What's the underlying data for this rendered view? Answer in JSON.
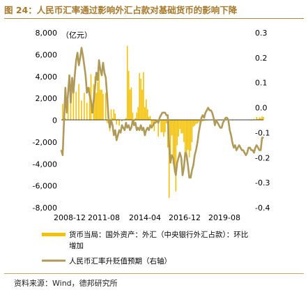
{
  "header": {
    "title": "图 24：人民币汇率通过影响外汇占款对基础货币的影响下降"
  },
  "footer": {
    "source": "资料来源：Wind，德邦研究所"
  },
  "chart_data": {
    "type": "bar+line",
    "unit_label": "（亿元）",
    "left_axis": {
      "ylim": [
        -8000,
        8000
      ],
      "ticks": [
        8000,
        6000,
        4000,
        2000,
        0,
        -2000,
        -4000,
        -6000,
        -8000
      ],
      "tick_labels": [
        "8,000",
        "6,000",
        "4,000",
        "2,000",
        "0",
        "-2,000",
        "-4,000",
        "-6,000",
        "-8,000"
      ]
    },
    "right_axis": {
      "ylim": [
        -0.4,
        0.3
      ],
      "ticks": [
        0.3,
        0.2,
        0.1,
        0.0,
        -0.1,
        -0.2,
        -0.3,
        -0.4
      ],
      "tick_labels": [
        "0.3",
        "0.2",
        "0.1",
        "0.0",
        "-0.1",
        "-0.2",
        "-0.3",
        "-0.4"
      ]
    },
    "x_axis": {
      "range": [
        "2008-12",
        "2021-06"
      ],
      "tick_labels": [
        "2008-12",
        "2011-08",
        "2014-04",
        "2016-12",
        "2019-08"
      ]
    },
    "legend": {
      "placement": "bottom",
      "entries": [
        "货币当局：国外资产：外汇（中央银行外汇占款）：环比增加",
        "人民币汇率升贬值预期（右轴）"
      ]
    },
    "colors": {
      "bar": "#f5c000",
      "line": "#b09a5a",
      "axis": "#000000"
    },
    "series": [
      {
        "name": "货币当局：国外资产：外汇（中央银行外汇占款）：环比增加",
        "type": "bar",
        "axis": "left",
        "points": [
          [
            "2009-01",
            1500
          ],
          [
            "2009-03",
            200
          ],
          [
            "2009-05",
            1800
          ],
          [
            "2009-07",
            2400
          ],
          [
            "2009-09",
            3200
          ],
          [
            "2009-11",
            2600
          ],
          [
            "2010-01",
            3300
          ],
          [
            "2010-03",
            1800
          ],
          [
            "2010-05",
            2500
          ],
          [
            "2010-07",
            1600
          ],
          [
            "2010-09",
            3000
          ],
          [
            "2010-10",
            4200
          ],
          [
            "2010-12",
            3300
          ],
          [
            "2011-01",
            4000
          ],
          [
            "2011-02",
            2500
          ],
          [
            "2011-03",
            3500
          ],
          [
            "2011-04",
            4400
          ],
          [
            "2011-05",
            2800
          ],
          [
            "2011-06",
            2800
          ],
          [
            "2011-07",
            2400
          ],
          [
            "2011-09",
            2500
          ],
          [
            "2011-10",
            -250
          ],
          [
            "2011-11",
            -300
          ],
          [
            "2011-12",
            -1000
          ],
          [
            "2012-01",
            1000
          ],
          [
            "2012-02",
            200
          ],
          [
            "2012-03",
            1000
          ],
          [
            "2012-04",
            600
          ],
          [
            "2012-05",
            -400
          ],
          [
            "2012-06",
            100
          ],
          [
            "2012-07",
            -500
          ],
          [
            "2012-09",
            -100
          ],
          [
            "2012-11",
            100
          ],
          [
            "2012-12",
            200
          ],
          [
            "2013-01",
            6800
          ],
          [
            "2013-02",
            4500
          ],
          [
            "2013-03",
            2800
          ],
          [
            "2013-04",
            3000
          ],
          [
            "2013-05",
            700
          ],
          [
            "2013-06",
            -400
          ],
          [
            "2013-07",
            200
          ],
          [
            "2013-08",
            700
          ],
          [
            "2013-09",
            1200
          ],
          [
            "2013-10",
            4300
          ],
          [
            "2013-11",
            3800
          ],
          [
            "2013-12",
            2800
          ],
          [
            "2014-01",
            4400
          ],
          [
            "2014-02",
            1200
          ],
          [
            "2014-03",
            1900
          ],
          [
            "2014-04",
            1000
          ],
          [
            "2014-05",
            300
          ],
          [
            "2014-06",
            400
          ],
          [
            "2014-07",
            -600
          ],
          [
            "2014-08",
            -300
          ],
          [
            "2014-09",
            -1000
          ],
          [
            "2014-10",
            -250
          ],
          [
            "2014-11",
            -100
          ],
          [
            "2014-12",
            -1500
          ],
          [
            "2015-01",
            -100
          ],
          [
            "2015-02",
            -1100
          ],
          [
            "2015-03",
            -1100
          ],
          [
            "2015-04",
            -1500
          ],
          [
            "2015-05",
            -1100
          ],
          [
            "2015-06",
            -300
          ],
          [
            "2015-07",
            -2500
          ],
          [
            "2015-08",
            -7100
          ],
          [
            "2015-09",
            -3600
          ],
          [
            "2015-10",
            -1400
          ],
          [
            "2015-11",
            -4000
          ],
          [
            "2015-12",
            -4800
          ],
          [
            "2016-01",
            -6500
          ],
          [
            "2016-02",
            -2300
          ],
          [
            "2016-03",
            -1500
          ],
          [
            "2016-04",
            -800
          ],
          [
            "2016-05",
            -1200
          ],
          [
            "2016-06",
            -1200
          ],
          [
            "2016-07",
            -2000
          ],
          [
            "2016-08",
            -3000
          ],
          [
            "2016-09",
            -3700
          ],
          [
            "2016-10",
            -2700
          ],
          [
            "2016-11",
            -3400
          ],
          [
            "2016-12",
            -2800
          ],
          [
            "2017-01",
            -2000
          ],
          [
            "2017-02",
            -600
          ],
          [
            "2017-03",
            -500
          ],
          [
            "2017-04",
            -350
          ],
          [
            "2017-05",
            -300
          ],
          [
            "2017-06",
            -200
          ],
          [
            "2017-07",
            -200
          ],
          [
            "2017-08",
            -150
          ],
          [
            "2017-09",
            -100
          ],
          [
            "2017-10",
            -50
          ],
          [
            "2017-11",
            -30
          ],
          [
            "2017-12",
            -20
          ],
          [
            "2018-01",
            20
          ],
          [
            "2018-03",
            30
          ],
          [
            "2018-05",
            -20
          ],
          [
            "2018-07",
            -30
          ],
          [
            "2018-09",
            -40
          ],
          [
            "2018-11",
            -20
          ],
          [
            "2019-01",
            50
          ],
          [
            "2019-04",
            30
          ],
          [
            "2019-07",
            -20
          ],
          [
            "2019-10",
            40
          ],
          [
            "2020-01",
            50
          ],
          [
            "2020-04",
            60
          ],
          [
            "2020-07",
            80
          ],
          [
            "2020-09",
            -30
          ],
          [
            "2020-11",
            120
          ],
          [
            "2021-01",
            300
          ],
          [
            "2021-02",
            100
          ],
          [
            "2021-03",
            250
          ],
          [
            "2021-04",
            200
          ],
          [
            "2021-05",
            350
          ],
          [
            "2021-06",
            300
          ]
        ]
      },
      {
        "name": "人民币汇率升贬值预期（右轴）",
        "type": "line",
        "axis": "right",
        "points": [
          [
            "2008-12",
            -0.17
          ],
          [
            "2009-01",
            -0.19
          ],
          [
            "2009-02",
            -0.05
          ],
          [
            "2009-03",
            0.08
          ],
          [
            "2009-04",
            -0.02
          ],
          [
            "2009-05",
            0.06
          ],
          [
            "2009-06",
            0.13
          ],
          [
            "2009-07",
            0.02
          ],
          [
            "2009-08",
            0.12
          ],
          [
            "2009-09",
            0.06
          ],
          [
            "2009-10",
            0.13
          ],
          [
            "2009-11",
            0.19
          ],
          [
            "2009-12",
            0.22
          ],
          [
            "2010-01",
            0.17
          ],
          [
            "2010-02",
            0.2
          ],
          [
            "2010-03",
            0.24
          ],
          [
            "2010-04",
            0.21
          ],
          [
            "2010-05",
            0.17
          ],
          [
            "2010-06",
            0.13
          ],
          [
            "2010-07",
            0.06
          ],
          [
            "2010-08",
            0.08
          ],
          [
            "2010-09",
            0.05
          ],
          [
            "2010-10",
            0.03
          ],
          [
            "2010-11",
            -0.02
          ],
          [
            "2010-12",
            0.03
          ],
          [
            "2011-01",
            0.08
          ],
          [
            "2011-02",
            0.14
          ],
          [
            "2011-03",
            0.11
          ],
          [
            "2011-04",
            0.19
          ],
          [
            "2011-05",
            0.15
          ],
          [
            "2011-06",
            0.13
          ],
          [
            "2011-07",
            0.18
          ],
          [
            "2011-08",
            0.14
          ],
          [
            "2011-09",
            0.12
          ],
          [
            "2011-10",
            0.05
          ],
          [
            "2011-11",
            -0.04
          ],
          [
            "2011-12",
            -0.08
          ],
          [
            "2012-01",
            -0.05
          ],
          [
            "2012-02",
            -0.07
          ],
          [
            "2012-03",
            -0.11
          ],
          [
            "2012-04",
            -0.09
          ],
          [
            "2012-05",
            -0.13
          ],
          [
            "2012-06",
            -0.11
          ],
          [
            "2012-07",
            -0.09
          ],
          [
            "2012-08",
            -0.1
          ],
          [
            "2012-09",
            -0.07
          ],
          [
            "2012-10",
            -0.08
          ],
          [
            "2012-11",
            -0.09
          ],
          [
            "2012-12",
            -0.06
          ],
          [
            "2013-01",
            -0.08
          ],
          [
            "2013-02",
            -0.07
          ],
          [
            "2013-03",
            -0.09
          ],
          [
            "2013-04",
            -0.08
          ],
          [
            "2013-05",
            -0.05
          ],
          [
            "2013-06",
            -0.07
          ],
          [
            "2013-07",
            -0.06
          ],
          [
            "2013-08",
            -0.09
          ],
          [
            "2013-09",
            -0.08
          ],
          [
            "2013-10",
            -0.09
          ],
          [
            "2013-11",
            -0.07
          ],
          [
            "2013-12",
            -0.09
          ],
          [
            "2014-01",
            -0.08
          ],
          [
            "2014-02",
            -0.11
          ],
          [
            "2014-03",
            -0.09
          ],
          [
            "2014-04",
            -0.08
          ],
          [
            "2014-05",
            -0.09
          ],
          [
            "2014-06",
            -0.07
          ],
          [
            "2014-07",
            -0.08
          ],
          [
            "2014-08",
            -0.07
          ],
          [
            "2014-09",
            -0.06
          ],
          [
            "2014-10",
            -0.06
          ],
          [
            "2014-11",
            -0.05
          ],
          [
            "2014-12",
            -0.06
          ],
          [
            "2015-01",
            -0.04
          ],
          [
            "2015-02",
            -0.03
          ],
          [
            "2015-03",
            -0.02
          ],
          [
            "2015-04",
            -0.02
          ],
          [
            "2015-05",
            -0.02
          ],
          [
            "2015-06",
            -0.03
          ],
          [
            "2015-07",
            -0.03
          ],
          [
            "2015-08",
            -0.15
          ],
          [
            "2015-09",
            -0.22
          ],
          [
            "2015-10",
            -0.19
          ],
          [
            "2015-11",
            -0.2
          ],
          [
            "2015-12",
            -0.24
          ],
          [
            "2016-01",
            -0.27
          ],
          [
            "2016-02",
            -0.22
          ],
          [
            "2016-03",
            -0.2
          ],
          [
            "2016-04",
            -0.18
          ],
          [
            "2016-05",
            -0.2
          ],
          [
            "2016-06",
            -0.27
          ],
          [
            "2016-07",
            -0.24
          ],
          [
            "2016-08",
            -0.18
          ],
          [
            "2016-09",
            -0.19
          ],
          [
            "2016-10",
            -0.23
          ],
          [
            "2016-11",
            -0.28
          ],
          [
            "2016-12",
            -0.28
          ],
          [
            "2017-01",
            -0.25
          ],
          [
            "2017-02",
            -0.23
          ],
          [
            "2017-03",
            -0.19
          ],
          [
            "2017-04",
            -0.17
          ],
          [
            "2017-05",
            -0.14
          ],
          [
            "2017-06",
            -0.1
          ],
          [
            "2017-07",
            -0.07
          ],
          [
            "2017-08",
            -0.04
          ],
          [
            "2017-09",
            -0.03
          ],
          [
            "2017-10",
            -0.04
          ],
          [
            "2017-11",
            -0.02
          ],
          [
            "2017-12",
            -0.01
          ],
          [
            "2018-01",
            0.0
          ],
          [
            "2018-02",
            -0.01
          ],
          [
            "2018-03",
            -0.01
          ],
          [
            "2018-04",
            -0.02
          ],
          [
            "2018-05",
            -0.04
          ],
          [
            "2018-06",
            -0.07
          ],
          [
            "2018-07",
            -0.05
          ],
          [
            "2018-08",
            -0.06
          ],
          [
            "2018-09",
            -0.07
          ],
          [
            "2018-10",
            -0.08
          ],
          [
            "2018-11",
            -0.08
          ],
          [
            "2018-12",
            -0.06
          ],
          [
            "2019-01",
            -0.05
          ],
          [
            "2019-02",
            -0.04
          ],
          [
            "2019-03",
            -0.04
          ],
          [
            "2019-04",
            -0.05
          ],
          [
            "2019-05",
            -0.09
          ],
          [
            "2019-06",
            -0.11
          ],
          [
            "2019-07",
            -0.14
          ],
          [
            "2019-08",
            -0.16
          ],
          [
            "2019-09",
            -0.15
          ],
          [
            "2019-10",
            -0.17
          ],
          [
            "2019-11",
            -0.16
          ],
          [
            "2019-12",
            -0.15
          ],
          [
            "2020-01",
            -0.16
          ],
          [
            "2020-02",
            -0.17
          ],
          [
            "2020-03",
            -0.17
          ],
          [
            "2020-04",
            -0.18
          ],
          [
            "2020-05",
            -0.19
          ],
          [
            "2020-06",
            -0.18
          ],
          [
            "2020-07",
            -0.16
          ],
          [
            "2020-08",
            -0.16
          ],
          [
            "2020-09",
            -0.17
          ],
          [
            "2020-10",
            -0.17
          ],
          [
            "2020-11",
            -0.18
          ],
          [
            "2020-12",
            -0.16
          ],
          [
            "2021-01",
            -0.15
          ],
          [
            "2021-02",
            -0.16
          ],
          [
            "2021-03",
            -0.17
          ],
          [
            "2021-04",
            -0.17
          ],
          [
            "2021-05",
            -0.12
          ],
          [
            "2021-06",
            -0.12
          ]
        ]
      }
    ]
  }
}
